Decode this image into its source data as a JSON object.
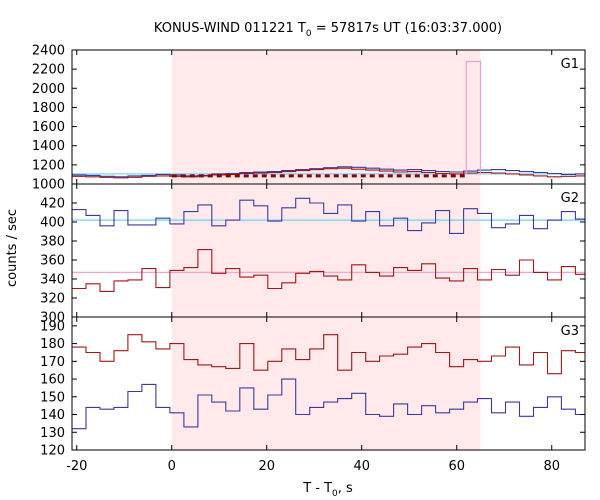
{
  "chart_data": {
    "type": "line",
    "title_main": "KONUS-WIND 011221 T",
    "title_sub": "0",
    "title_rest": " = 57817s UT (16:03:37.000)",
    "xlabel_main": "T - T",
    "xlabel_sub": "0",
    "xlabel_rest": ", s",
    "ylabel": "counts / sec",
    "xlim": [
      -21,
      87
    ],
    "x_ticks": [
      -20,
      0,
      20,
      40,
      60,
      80
    ],
    "highlight_x": [
      0,
      65
    ],
    "colors": {
      "highlight": "#ffe9ea",
      "blue_series": "#3a3a9e",
      "red_series": "#a01818",
      "blue_bg": "#6fd0f5",
      "pink_bg": "#f5a3d3",
      "pink_spike": "#e99fd4",
      "dashed": "#8b0000"
    },
    "panels": [
      {
        "label": "G1",
        "ylim": [
          1000,
          2400
        ],
        "y_ticks": [
          1000,
          1200,
          1400,
          1600,
          1800,
          2000,
          2200,
          2400
        ],
        "bin_start": -21,
        "bin_width": 2.944,
        "blue_series": [
          1095,
          1090,
          1080,
          1075,
          1085,
          1090,
          1100,
          1095,
          1085,
          1090,
          1105,
          1110,
          1120,
          1125,
          1130,
          1140,
          1150,
          1160,
          1170,
          1180,
          1175,
          1165,
          1155,
          1145,
          1150,
          1140,
          1130,
          1125,
          1135,
          1145,
          1150,
          1140,
          1130,
          1120,
          1110,
          1100,
          1105,
          1095,
          1080
        ],
        "red_series": [
          1080,
          1075,
          1070,
          1065,
          1070,
          1080,
          1085,
          1080,
          1075,
          1085,
          1095,
          1100,
          1110,
          1115,
          1120,
          1130,
          1140,
          1150,
          1160,
          1165,
          1155,
          1145,
          1135,
          1125,
          1130,
          1120,
          1110,
          1105,
          1115,
          1120,
          1115,
          1105,
          1095,
          1085,
          1075,
          1080,
          1085,
          1075,
          1070
        ],
        "blue_bg": 1105,
        "dashed": {
          "x": [
            0,
            62
          ],
          "y": 1085
        },
        "spike": {
          "x": [
            62,
            65
          ],
          "y": 2280
        }
      },
      {
        "label": "G2",
        "ylim": [
          300,
          440
        ],
        "y_ticks": [
          300,
          320,
          340,
          360,
          380,
          400,
          420
        ],
        "bin_start": -21,
        "bin_width": 2.944,
        "blue_series": [
          413,
          407,
          396,
          412,
          397,
          397,
          404,
          398,
          411,
          418,
          396,
          402,
          423,
          417,
          401,
          415,
          425,
          420,
          409,
          418,
          401,
          411,
          396,
          404,
          391,
          399,
          412,
          388,
          414,
          409,
          394,
          398,
          407,
          393,
          402,
          411,
          403,
          390,
          395,
          406,
          400,
          398,
          408,
          397,
          404,
          399,
          402,
          384,
          411,
          405,
          391,
          398,
          384,
          420,
          412,
          390,
          380
        ],
        "red_series": [
          330,
          335,
          327,
          338,
          339,
          351,
          331,
          349,
          352,
          371,
          346,
          351,
          342,
          344,
          330,
          336,
          346,
          348,
          343,
          339,
          355,
          347,
          343,
          352,
          349,
          356,
          341,
          338,
          351,
          339,
          350,
          344,
          360,
          347,
          339,
          353,
          345,
          356,
          350,
          343,
          361,
          357,
          364,
          350,
          345,
          360,
          341,
          353,
          365,
          346,
          343,
          337,
          348,
          339,
          345,
          337,
          347
        ],
        "blue_bg": 402,
        "pink_bg": 347
      },
      {
        "label": "G3",
        "ylim": [
          120,
          195
        ],
        "y_ticks": [
          120,
          130,
          140,
          150,
          160,
          170,
          180,
          190
        ],
        "bin_start": -21,
        "bin_width": 2.944,
        "blue_series": [
          132,
          144,
          143,
          144,
          153,
          157,
          144,
          141,
          133,
          151,
          147,
          142,
          155,
          143,
          151,
          160,
          140,
          144,
          147,
          149,
          152,
          140,
          139,
          146,
          140,
          145,
          141,
          143,
          147,
          149,
          141,
          147,
          139,
          144,
          150,
          143,
          140,
          137,
          145,
          142,
          147,
          155,
          150,
          148,
          142,
          140,
          157,
          165,
          148,
          146,
          147,
          140,
          146,
          143,
          148,
          146,
          137
        ],
        "red_series": [
          178,
          175,
          170,
          176,
          185,
          181,
          177,
          180,
          171,
          168,
          167,
          166,
          180,
          165,
          170,
          177,
          171,
          177,
          185,
          165,
          175,
          170,
          173,
          174,
          178,
          180,
          175,
          167,
          171,
          170,
          173,
          178,
          168,
          175,
          163,
          176,
          175,
          170,
          165,
          148,
          168,
          175,
          170,
          165,
          168,
          150,
          162,
          172,
          178,
          175,
          162,
          165,
          168,
          165,
          175,
          170,
          160
        ]
      }
    ]
  }
}
